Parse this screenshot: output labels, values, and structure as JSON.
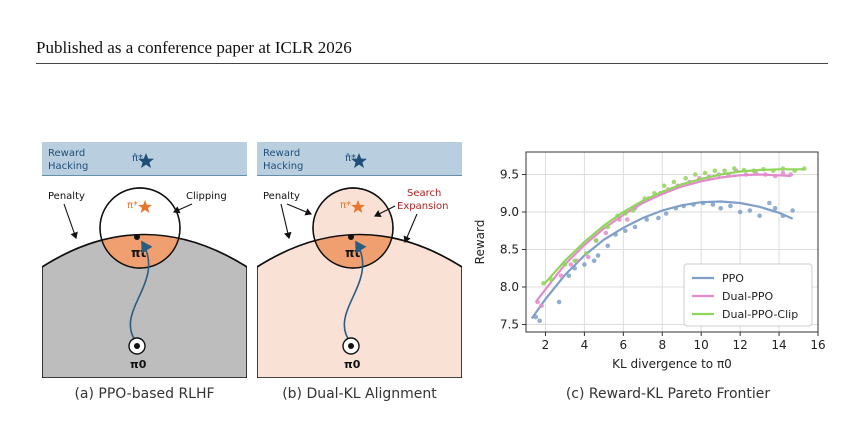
{
  "header": {
    "text": "Published as a conference paper at ICLR 2026"
  },
  "figure": {
    "panel_a": {
      "band_label_line1": "Reward",
      "band_label_line2": "Hacking",
      "hat_pi_star": "π̂*",
      "pi_star": "π*",
      "pi_t": "πt",
      "pi_0": "π0",
      "penalty_label": "Penalty",
      "clipping_label": "Clipping",
      "caption": "(a) PPO-based RLHF"
    },
    "panel_b": {
      "band_label_line1": "Reward",
      "band_label_line2": "Hacking",
      "hat_pi_star": "π̂*",
      "pi_star": "π*",
      "pi_t": "πt",
      "pi_0": "π0",
      "penalty_label": "Penalty",
      "search_label_line1": "Search",
      "search_label_line2": "Expansion",
      "caption": "(b) Dual-KL Alignment"
    },
    "panel_c": {
      "caption": "(c) Reward-KL Pareto Frontier"
    },
    "colors": {
      "band": "#b9cfdf",
      "band_line": "#4a7a98",
      "gray_region": "#bdbdbd",
      "peach_region": "#f9e1d6",
      "orange": "#f0a070",
      "star_orange": "#e8772e",
      "star_navy": "#1f4e79",
      "arrow_blue": "#2b5d80",
      "search_red": "#b22222"
    }
  },
  "chart_data": {
    "type": "scatter",
    "xlabel": "KL divergence to π0",
    "ylabel": "Reward",
    "xlim": [
      1,
      16
    ],
    "ylim": [
      7.4,
      9.8
    ],
    "xticks": [
      2,
      4,
      6,
      8,
      10,
      12,
      14,
      16
    ],
    "yticks": [
      7.5,
      8.0,
      8.5,
      9.0,
      9.5
    ],
    "grid": true,
    "legend_position": "lower-right",
    "series": [
      {
        "name": "PPO",
        "color": "#7f9fc9",
        "points": [
          [
            1.5,
            7.6
          ],
          [
            1.7,
            7.55
          ],
          [
            2.7,
            7.8
          ],
          [
            3.2,
            8.15
          ],
          [
            3.5,
            8.25
          ],
          [
            4.0,
            8.3
          ],
          [
            4.5,
            8.35
          ],
          [
            4.7,
            8.42
          ],
          [
            5.2,
            8.55
          ],
          [
            5.6,
            8.7
          ],
          [
            6.1,
            8.75
          ],
          [
            6.6,
            8.8
          ],
          [
            7.2,
            8.9
          ],
          [
            7.8,
            8.92
          ],
          [
            8.2,
            8.98
          ],
          [
            8.7,
            9.05
          ],
          [
            9.1,
            9.08
          ],
          [
            9.6,
            9.1
          ],
          [
            10.1,
            9.12
          ],
          [
            10.6,
            9.1
          ],
          [
            11.0,
            9.05
          ],
          [
            11.5,
            9.08
          ],
          [
            12.0,
            9.0
          ],
          [
            12.5,
            9.02
          ],
          [
            13.0,
            8.95
          ],
          [
            13.5,
            9.12
          ],
          [
            13.8,
            9.05
          ],
          [
            14.2,
            8.95
          ],
          [
            14.7,
            9.02
          ]
        ],
        "fit": [
          [
            1.3,
            7.58
          ],
          [
            2,
            7.84
          ],
          [
            3,
            8.16
          ],
          [
            4,
            8.42
          ],
          [
            5,
            8.63
          ],
          [
            6,
            8.79
          ],
          [
            7,
            8.92
          ],
          [
            8,
            9.02
          ],
          [
            9,
            9.09
          ],
          [
            10,
            9.13
          ],
          [
            11,
            9.14
          ],
          [
            12,
            9.12
          ],
          [
            13,
            9.07
          ],
          [
            14,
            8.99
          ],
          [
            14.7,
            8.91
          ]
        ]
      },
      {
        "name": "Dual-PPO",
        "color": "#e38ccc",
        "points": [
          [
            1.6,
            7.8
          ],
          [
            1.8,
            7.75
          ],
          [
            2.8,
            8.15
          ],
          [
            3.3,
            8.3
          ],
          [
            3.6,
            8.35
          ],
          [
            4.2,
            8.4
          ],
          [
            4.6,
            8.62
          ],
          [
            5.1,
            8.72
          ],
          [
            5.8,
            8.9
          ],
          [
            6.2,
            8.9
          ],
          [
            6.6,
            9.05
          ],
          [
            7.3,
            9.18
          ],
          [
            7.9,
            9.25
          ],
          [
            8.3,
            9.3
          ],
          [
            8.8,
            9.35
          ],
          [
            9.4,
            9.4
          ],
          [
            9.9,
            9.45
          ],
          [
            10.4,
            9.47
          ],
          [
            10.9,
            9.5
          ],
          [
            11.4,
            9.5
          ],
          [
            11.8,
            9.55
          ],
          [
            12.3,
            9.5
          ],
          [
            12.8,
            9.52
          ],
          [
            13.3,
            9.5
          ],
          [
            13.8,
            9.48
          ],
          [
            14.2,
            9.52
          ],
          [
            14.6,
            9.5
          ]
        ],
        "fit": [
          [
            1.5,
            7.8
          ],
          [
            2,
            7.97
          ],
          [
            3,
            8.3
          ],
          [
            4,
            8.56
          ],
          [
            5,
            8.78
          ],
          [
            6,
            8.96
          ],
          [
            7,
            9.12
          ],
          [
            8,
            9.24
          ],
          [
            9,
            9.34
          ],
          [
            10,
            9.41
          ],
          [
            11,
            9.46
          ],
          [
            12,
            9.49
          ],
          [
            13,
            9.5
          ],
          [
            14,
            9.49
          ],
          [
            14.6,
            9.48
          ]
        ]
      },
      {
        "name": "Dual-PPO-Clip",
        "color": "#8fd65a",
        "points": [
          [
            1.9,
            8.05
          ],
          [
            2.3,
            8.1
          ],
          [
            3.0,
            8.3
          ],
          [
            3.5,
            8.35
          ],
          [
            4.1,
            8.45
          ],
          [
            4.6,
            8.62
          ],
          [
            5.2,
            8.8
          ],
          [
            5.7,
            8.95
          ],
          [
            6.1,
            8.98
          ],
          [
            6.5,
            9.02
          ],
          [
            7.1,
            9.18
          ],
          [
            7.6,
            9.25
          ],
          [
            8.1,
            9.35
          ],
          [
            8.6,
            9.4
          ],
          [
            9.2,
            9.45
          ],
          [
            9.7,
            9.5
          ],
          [
            10.2,
            9.52
          ],
          [
            10.7,
            9.55
          ],
          [
            11.2,
            9.55
          ],
          [
            11.7,
            9.58
          ],
          [
            12.2,
            9.56
          ],
          [
            12.7,
            9.55
          ],
          [
            13.2,
            9.57
          ],
          [
            13.7,
            9.55
          ],
          [
            14.2,
            9.58
          ],
          [
            14.8,
            9.55
          ],
          [
            15.3,
            9.58
          ]
        ],
        "fit": [
          [
            1.9,
            8.03
          ],
          [
            3,
            8.35
          ],
          [
            4,
            8.6
          ],
          [
            5,
            8.82
          ],
          [
            6,
            9.0
          ],
          [
            7,
            9.15
          ],
          [
            8,
            9.27
          ],
          [
            9,
            9.37
          ],
          [
            10,
            9.44
          ],
          [
            11,
            9.5
          ],
          [
            12,
            9.54
          ],
          [
            13,
            9.56
          ],
          [
            14,
            9.57
          ],
          [
            15,
            9.57
          ],
          [
            15.3,
            9.57
          ]
        ]
      }
    ]
  }
}
